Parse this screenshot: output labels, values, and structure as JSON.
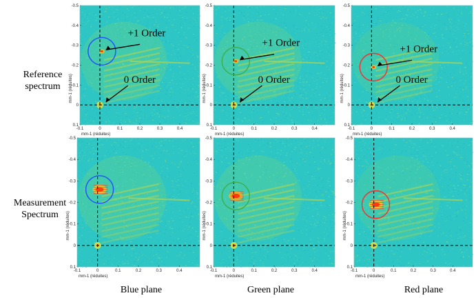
{
  "row_labels": {
    "top": [
      "Reference",
      "spectrum"
    ],
    "bottom": [
      "Measurement",
      "Spectrum"
    ]
  },
  "column_labels": [
    "Blue plane",
    "Green plane",
    "Red plane"
  ],
  "annotations": {
    "first_order": "+1 Order",
    "zero_order": "0 Order"
  },
  "axis": {
    "xlabel": "mm-1 (réduites)",
    "ylabel": "mm-1 (réduites)",
    "x_ticks_ref": [
      "-0.1",
      "0",
      "0.1",
      "0.2",
      "0.3",
      "0.4"
    ],
    "y_ticks_ref": [
      "-0.5",
      "-0.4",
      "-0.3",
      "-0.2",
      "-0.1",
      "0",
      "0.1"
    ]
  },
  "colors": {
    "background": "#2ec6c4",
    "blue_circle": "#1f4fff",
    "green_circle": "#3cae4c",
    "red_circle": "#ff2a2a",
    "band": "#b7d44a",
    "hot": "#ff3a10"
  },
  "panels": [
    {
      "id": "ref-blue",
      "row": "top",
      "col": "blue",
      "circle_color": "#1f4fff",
      "order_y": -0.27,
      "show_annotations": true
    },
    {
      "id": "ref-green",
      "row": "top",
      "col": "green",
      "circle_color": "#3cae4c",
      "order_y": -0.22,
      "show_annotations": true
    },
    {
      "id": "ref-red",
      "row": "top",
      "col": "red",
      "circle_color": "#ff2a2a",
      "order_y": -0.19,
      "show_annotations": true
    },
    {
      "id": "meas-blue",
      "row": "bottom",
      "col": "blue",
      "circle_color": "#1f4fff",
      "order_y": -0.26,
      "show_annotations": false
    },
    {
      "id": "meas-green",
      "row": "bottom",
      "col": "green",
      "circle_color": "#3cae4c",
      "order_y": -0.23,
      "show_annotations": false
    },
    {
      "id": "meas-red",
      "row": "bottom",
      "col": "red",
      "circle_color": "#ff2a2a",
      "order_y": -0.19,
      "show_annotations": false
    }
  ]
}
